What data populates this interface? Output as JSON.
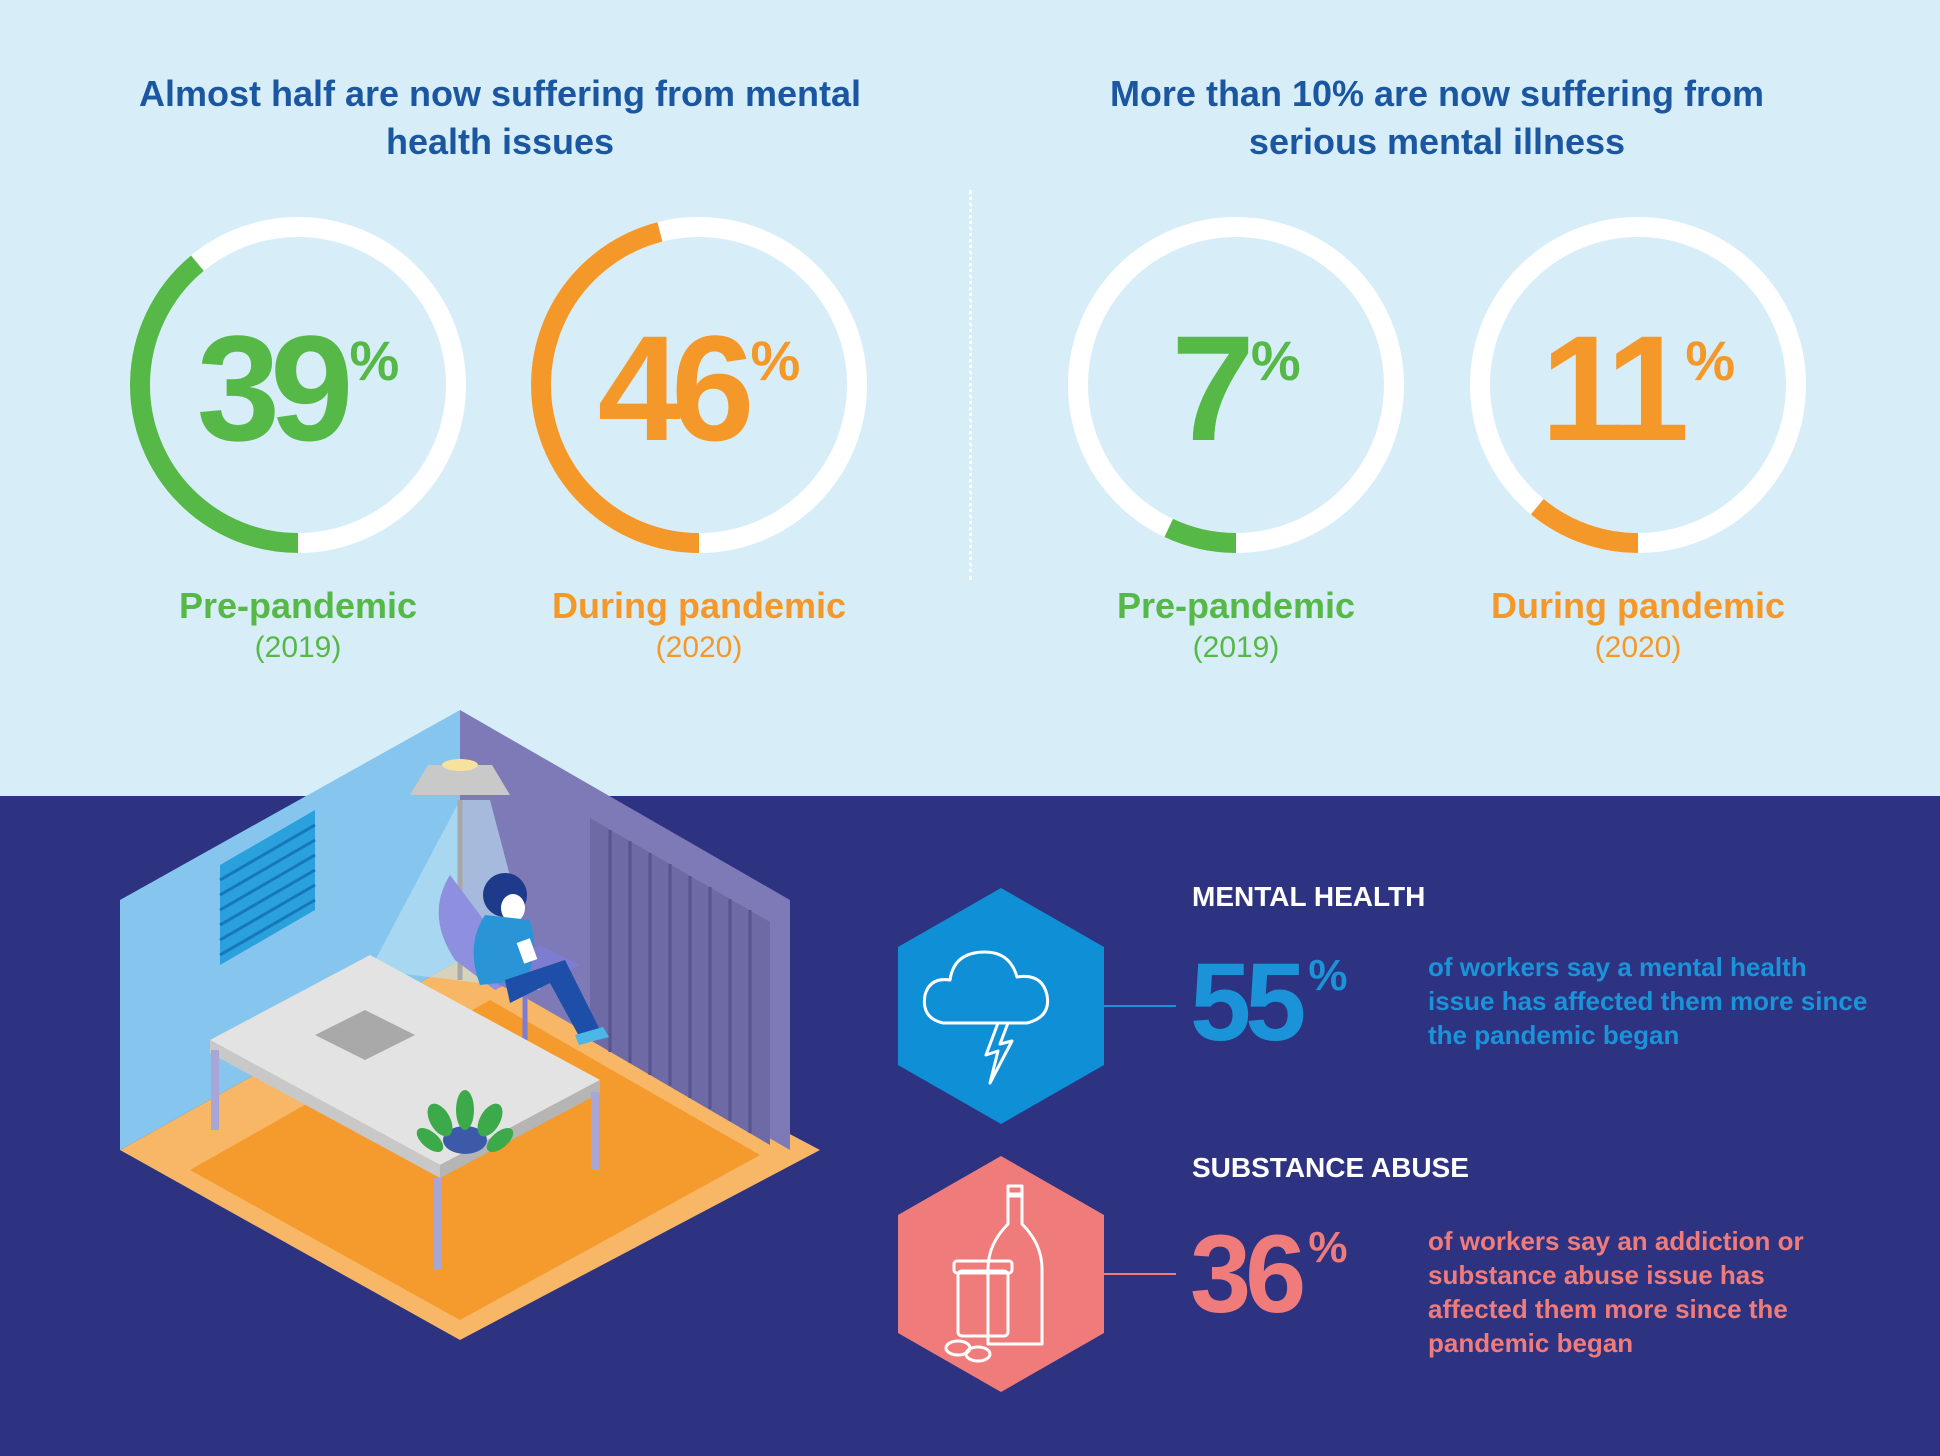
{
  "top": {
    "left_heading": "Almost half are now suffering from mental health issues",
    "right_heading": "More than 10% are now suffering from serious mental illness",
    "stats": [
      {
        "value": "39",
        "sign": "%",
        "label": "Pre-pandemic",
        "year": "(2019)",
        "fraction": 0.39,
        "color": "#56b846"
      },
      {
        "value": "46",
        "sign": "%",
        "label": "During pandemic",
        "year": "(2020)",
        "fraction": 0.46,
        "color": "#f5982a"
      },
      {
        "value": "7",
        "sign": "%",
        "label": "Pre-pandemic",
        "year": "(2019)",
        "fraction": 0.07,
        "color": "#56b846"
      },
      {
        "value": "11",
        "sign": "%",
        "label": "During pandemic",
        "year": "(2020)",
        "fraction": 0.11,
        "color": "#f5982a"
      }
    ]
  },
  "bottom": {
    "mental_health": {
      "title": "MENTAL HEALTH",
      "value": "55",
      "sign": "%",
      "text": "of workers say a mental health issue has affected them more since the pandemic began",
      "color": "#1b93d8",
      "icon": "storm-cloud-icon"
    },
    "substance_abuse": {
      "title": "SUBSTANCE ABUSE",
      "value": "36",
      "sign": "%",
      "text": "of workers say an addiction or substance abuse issue has affected them more since the pandemic began",
      "color": "#ef7b7b",
      "icon": "bottle-and-pills-icon"
    }
  },
  "colors": {
    "top_background": "#d7eef9",
    "bottom_background": "#2e3381",
    "heading": "#1b56a0",
    "ring_track": "#ffffff"
  }
}
